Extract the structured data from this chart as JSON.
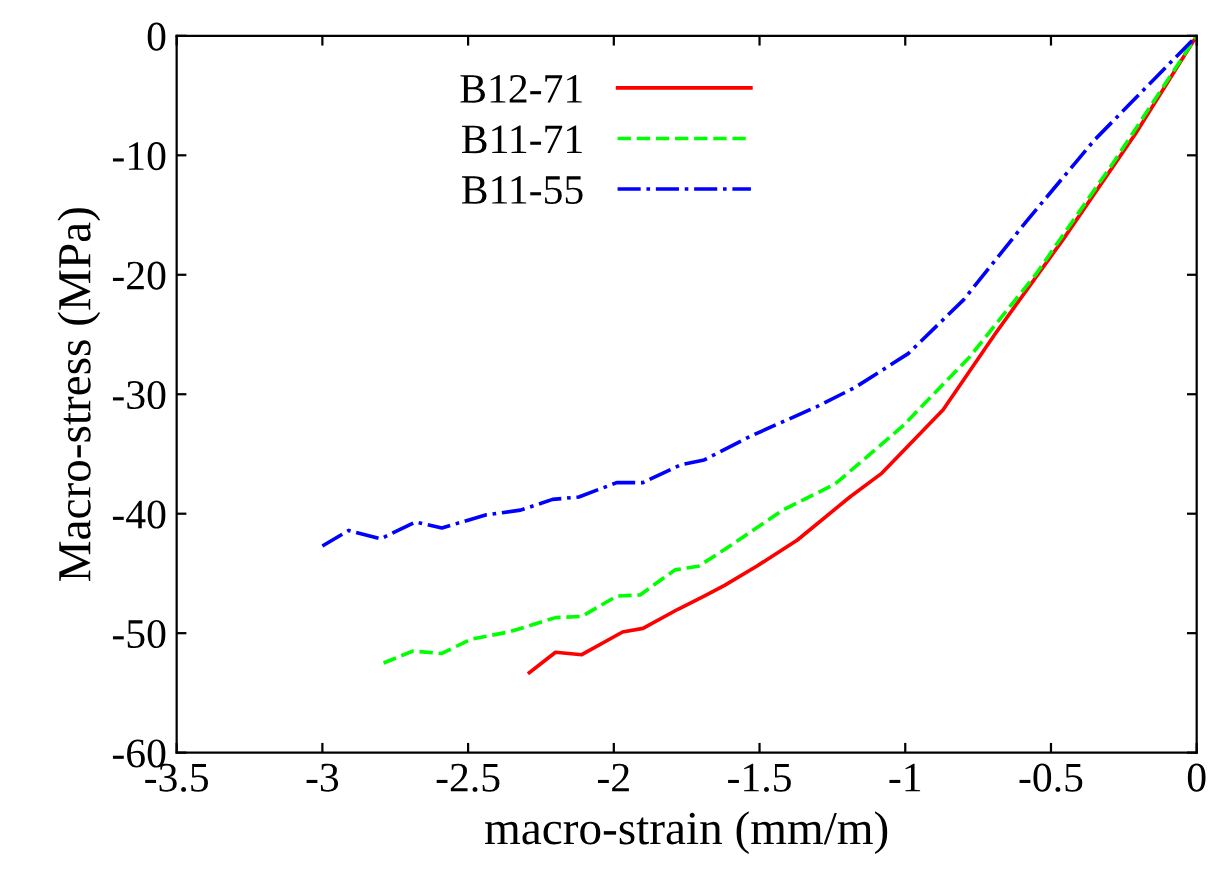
{
  "chart_data": {
    "type": "line",
    "xlabel": "macro-strain (mm/m)",
    "ylabel": "Macro-stress (MPa)",
    "xlim": [
      -3.5,
      0
    ],
    "xticks": [
      -3.5,
      -3,
      -2.5,
      -2,
      -1.5,
      -1,
      -0.5,
      0
    ],
    "ylim": [
      -60,
      0
    ],
    "yticks": [
      -60,
      -50,
      -40,
      -30,
      -20,
      -10,
      0
    ],
    "grid": false,
    "legend": "top",
    "marker": "none",
    "series": [
      {
        "name": "B12-71",
        "color": "#ff0000",
        "line_style": "solid",
        "x": [
          -2.29,
          -2.2,
          -2.11,
          -1.97,
          -1.9,
          -1.78,
          -1.69,
          -1.62,
          -1.51,
          -1.37,
          -1.19,
          -1.08,
          -0.87,
          -0.69,
          -0.46,
          -0.21,
          0
        ],
        "values": [
          -53.3,
          -51.6,
          -51.8,
          -49.9,
          -49.6,
          -48.0,
          -46.9,
          -46.0,
          -44.4,
          -42.2,
          -38.6,
          -36.6,
          -31.3,
          -24.9,
          -17.1,
          -8.2,
          0
        ]
      },
      {
        "name": "B11-71",
        "color": "#00ff00",
        "line_style": "dashed",
        "x": [
          -2.79,
          -2.69,
          -2.59,
          -2.49,
          -2.36,
          -2.2,
          -2.11,
          -1.99,
          -1.91,
          -1.79,
          -1.71,
          -1.62,
          -1.42,
          -1.24,
          -1.01,
          -0.78,
          -0.55,
          -0.28,
          0
        ],
        "values": [
          -52.5,
          -51.5,
          -51.7,
          -50.5,
          -49.9,
          -48.7,
          -48.6,
          -46.9,
          -46.8,
          -44.7,
          -44.4,
          -43.0,
          -39.7,
          -37.5,
          -32.7,
          -26.9,
          -19.9,
          -10.4,
          0
        ]
      },
      {
        "name": "B11-55",
        "color": "#0000ff",
        "line_style": "dashdot",
        "x": [
          -3.0,
          -2.91,
          -2.8,
          -2.68,
          -2.59,
          -2.44,
          -2.32,
          -2.21,
          -2.12,
          -1.99,
          -1.9,
          -1.77,
          -1.69,
          -1.53,
          -1.3,
          -1.17,
          -0.99,
          -0.8,
          -0.58,
          -0.35,
          0
        ],
        "values": [
          -42.7,
          -41.4,
          -42.1,
          -40.7,
          -41.2,
          -40.1,
          -39.7,
          -38.8,
          -38.6,
          -37.4,
          -37.4,
          -35.9,
          -35.5,
          -33.5,
          -31.0,
          -29.4,
          -26.6,
          -22.1,
          -15.4,
          -8.7,
          0
        ]
      }
    ]
  }
}
